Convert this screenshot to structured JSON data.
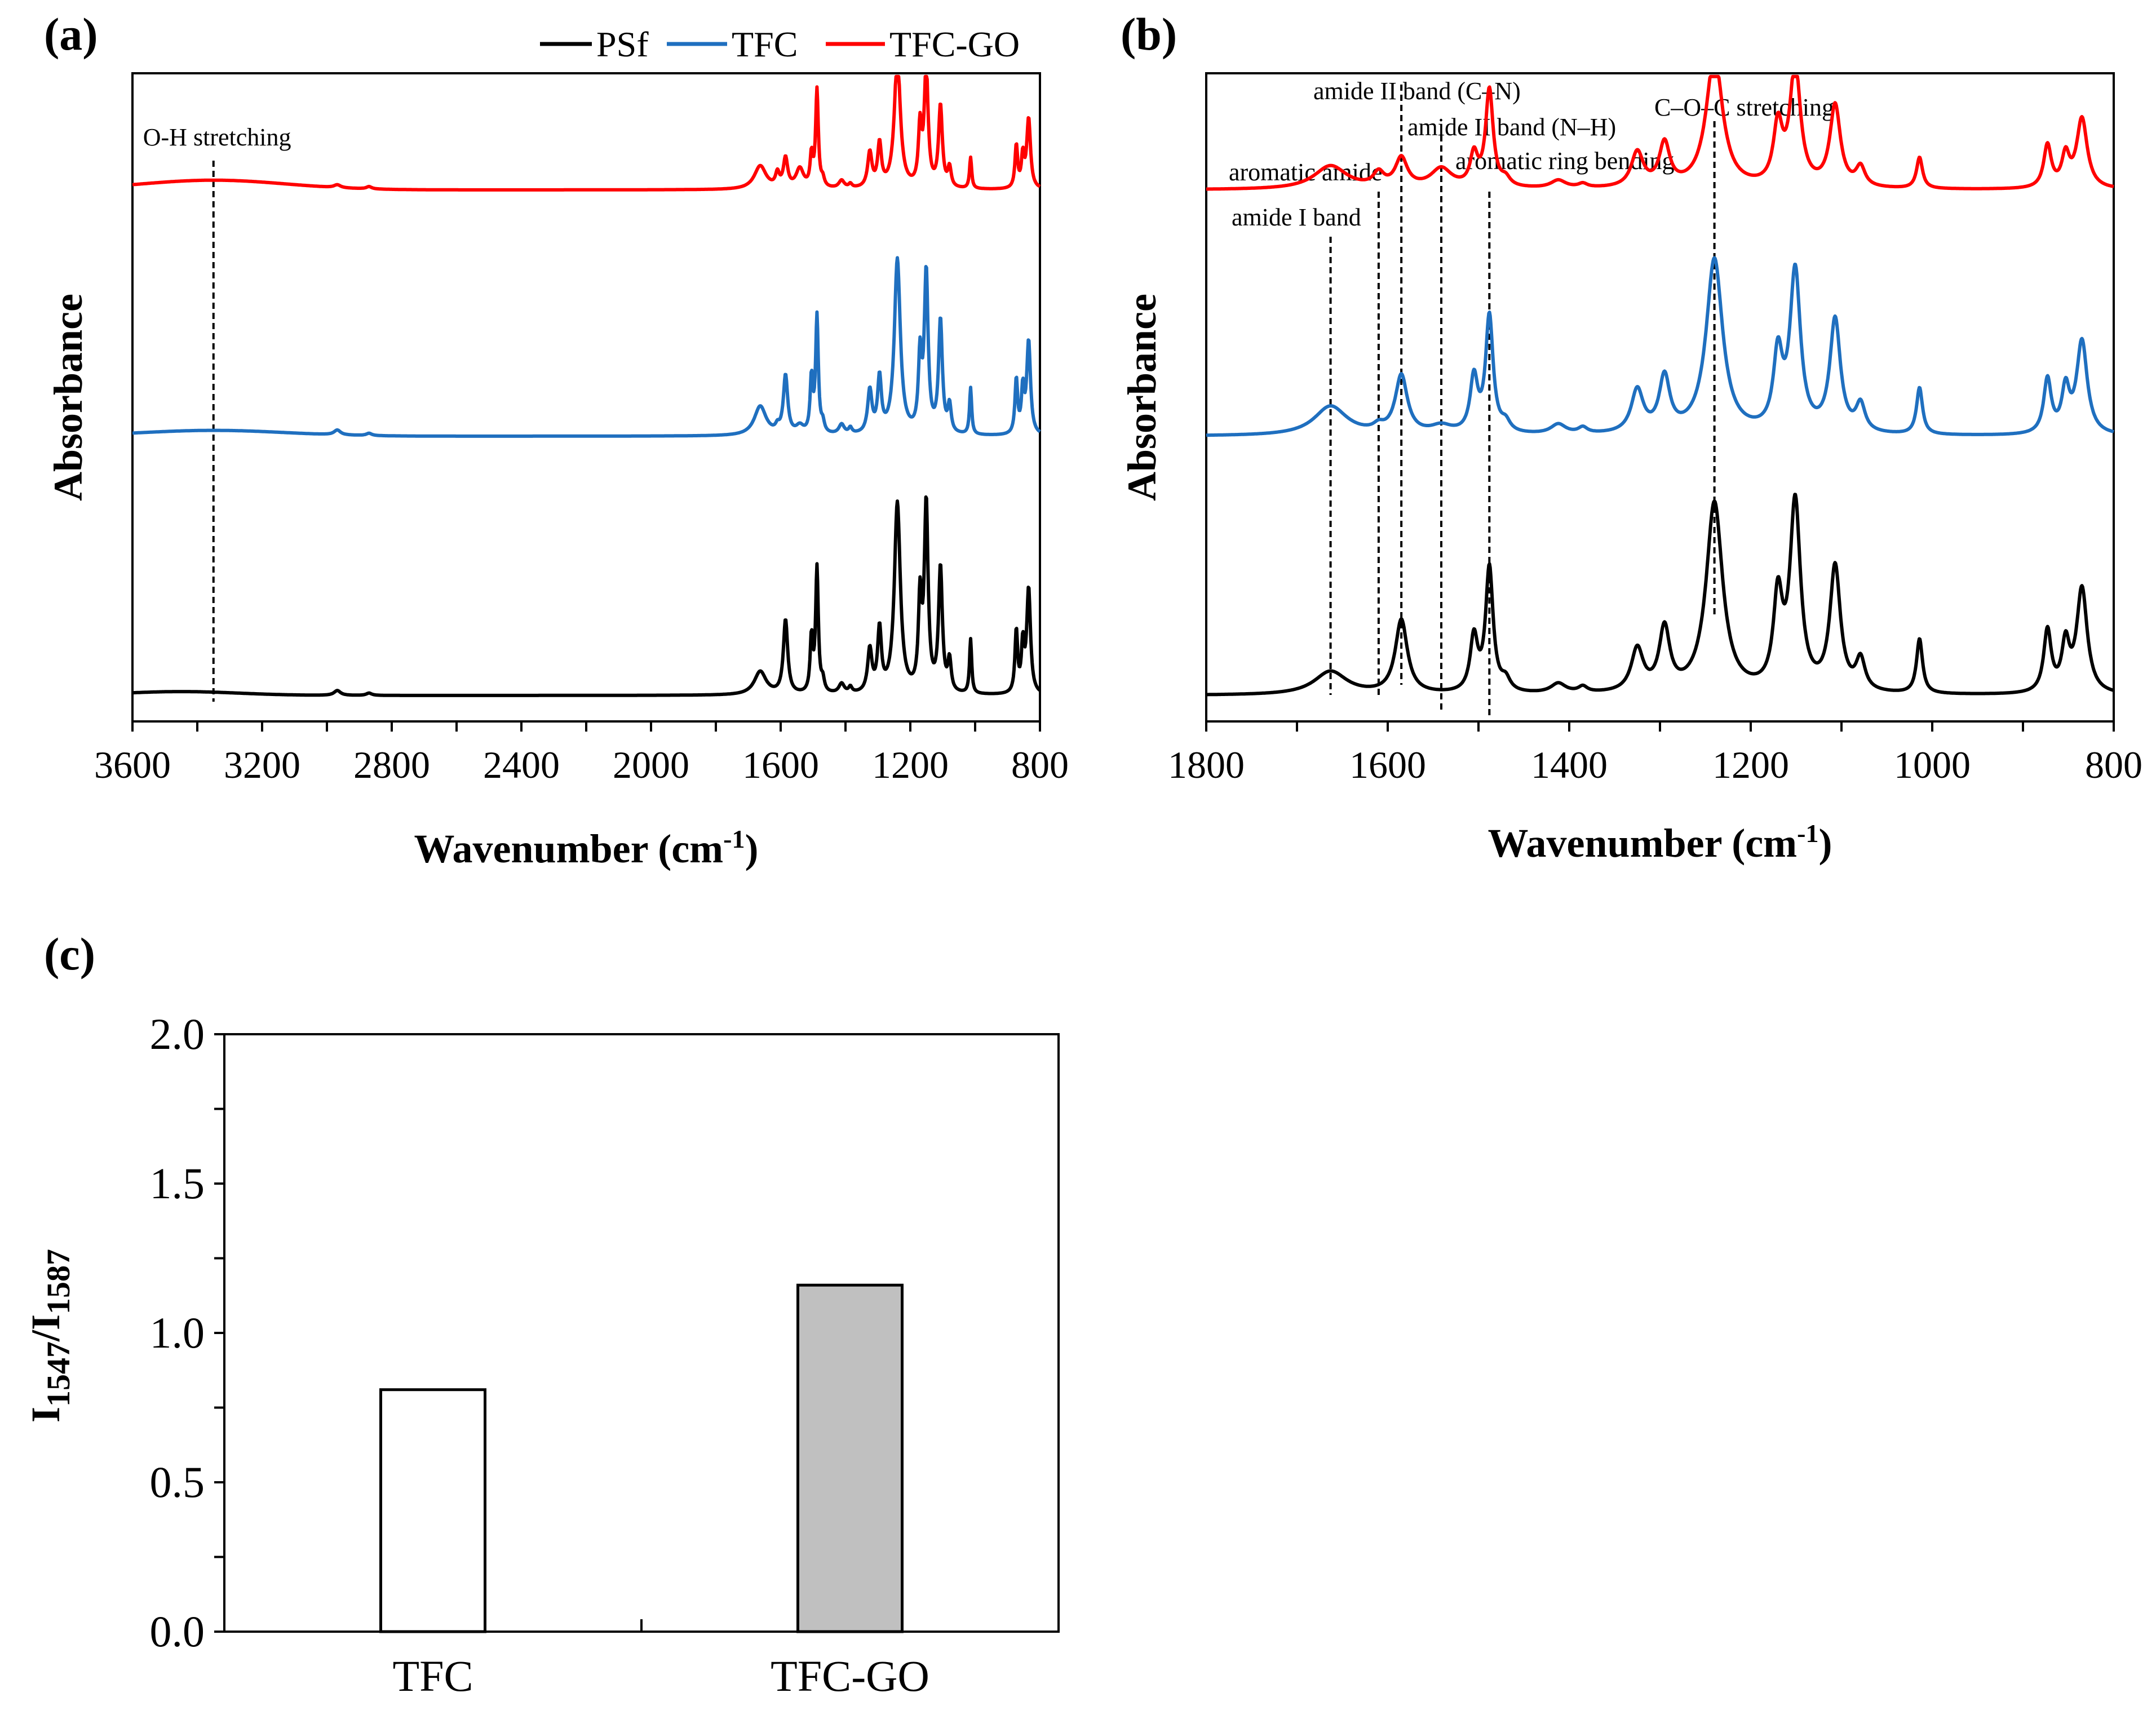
{
  "figure_labels": {
    "a": "(a)",
    "b": "(b)",
    "c": "(c)"
  },
  "legend": {
    "items": [
      {
        "name": "PSf",
        "color": "#000000"
      },
      {
        "name": "TFC",
        "color": "#1f6fbf"
      },
      {
        "name": "TFC-GO",
        "color": "#ff0000"
      }
    ]
  },
  "chart_data": [
    {
      "id": "a",
      "type": "line",
      "title": "",
      "xlabel_main": "Wavenumber (cm",
      "xlabel_sup": "-1",
      "xlabel_end": ")",
      "ylabel": "Absorbance",
      "xlim": [
        3600,
        800
      ],
      "xticks": [
        3600,
        3200,
        2800,
        2400,
        2000,
        1600,
        1200,
        800
      ],
      "ylim": [
        0,
        100
      ],
      "series": [
        {
          "name": "PSf",
          "color": "#000000",
          "offset": 4
        },
        {
          "name": "TFC",
          "color": "#1f6fbf",
          "offset": 44
        },
        {
          "name": "TFC-GO",
          "color": "#ff0000",
          "offset": 82
        }
      ],
      "markers": [
        {
          "x": 3350,
          "label": "O-H stretching"
        }
      ]
    },
    {
      "id": "b",
      "type": "line",
      "title": "",
      "xlabel_main": "Wavenumber (cm",
      "xlabel_sup": "-1",
      "xlabel_end": ")",
      "ylabel": "Absorbance",
      "xlim": [
        1800,
        800
      ],
      "xticks": [
        1800,
        1600,
        1400,
        1200,
        1000,
        800
      ],
      "ylim": [
        0,
        100
      ],
      "series": [
        {
          "name": "PSf",
          "color": "#000000",
          "offset": 4
        },
        {
          "name": "TFC",
          "color": "#1f6fbf",
          "offset": 44
        },
        {
          "name": "TFC-GO",
          "color": "#ff0000",
          "offset": 82
        }
      ],
      "markers": [
        {
          "x": 1663,
          "label": "amide I band"
        },
        {
          "x": 1610,
          "label": "aromatic amide"
        },
        {
          "x": 1585,
          "label": "amide II band (C–N)"
        },
        {
          "x": 1541,
          "label": "amide II band (N–H)"
        },
        {
          "x": 1488,
          "label": "aromatic ring bending"
        },
        {
          "x": 1240,
          "label": "C–O–C stretching"
        }
      ],
      "peaks": [
        {
          "x": 1663,
          "w": 22,
          "h": [
            12,
            15,
            12
          ]
        },
        {
          "x": 1610,
          "w": 7,
          "h": [
            0,
            3,
            7
          ]
        },
        {
          "x": 1585,
          "w": 8,
          "h": [
            38,
            30,
            15
          ]
        },
        {
          "x": 1541,
          "w": 14,
          "h": [
            0,
            4,
            10
          ]
        },
        {
          "x": 1505,
          "w": 5,
          "h": [
            28,
            28,
            16
          ]
        },
        {
          "x": 1488,
          "w": 5,
          "h": [
            64,
            60,
            50
          ]
        },
        {
          "x": 1470,
          "w": 6,
          "h": [
            6,
            5,
            4
          ]
        },
        {
          "x": 1412,
          "w": 10,
          "h": [
            5,
            5,
            4
          ]
        },
        {
          "x": 1385,
          "w": 6,
          "h": [
            3,
            3,
            2
          ]
        },
        {
          "x": 1325,
          "w": 8,
          "h": [
            22,
            22,
            18
          ]
        },
        {
          "x": 1295,
          "w": 7,
          "h": [
            32,
            28,
            22
          ]
        },
        {
          "x": 1240,
          "w": 11,
          "h": [
            98,
            90,
            68
          ]
        },
        {
          "x": 1170,
          "w": 6,
          "h": [
            46,
            38,
            30
          ]
        },
        {
          "x": 1151,
          "w": 7,
          "h": [
            96,
            82,
            62
          ]
        },
        {
          "x": 1107,
          "w": 7,
          "h": [
            64,
            58,
            42
          ]
        },
        {
          "x": 1079,
          "w": 6,
          "h": [
            16,
            14,
            10
          ]
        },
        {
          "x": 1014,
          "w": 4,
          "h": [
            28,
            24,
            16
          ]
        },
        {
          "x": 873,
          "w": 5,
          "h": [
            32,
            28,
            22
          ]
        },
        {
          "x": 853,
          "w": 5,
          "h": [
            24,
            22,
            16
          ]
        },
        {
          "x": 835,
          "w": 7,
          "h": [
            54,
            48,
            36
          ]
        }
      ]
    },
    {
      "id": "c",
      "type": "bar",
      "title": "",
      "xlabel": "",
      "ylabel_main": "I",
      "ylabel_sub1": "1547",
      "ylabel_mid": "/I",
      "ylabel_sub2": "1587",
      "categories": [
        "TFC",
        "TFC-GO"
      ],
      "values": [
        0.81,
        1.16
      ],
      "colors": [
        "#ffffff",
        "#c0c0c0"
      ],
      "ylim": [
        0.0,
        2.0
      ],
      "yticks": [
        "0.0",
        "0.5",
        "1.0",
        "1.5",
        "2.0"
      ]
    }
  ]
}
